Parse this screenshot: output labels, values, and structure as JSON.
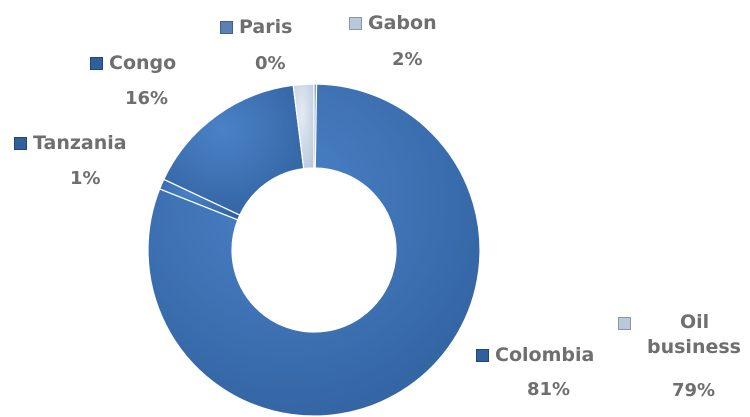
{
  "chart_data": {
    "type": "pie",
    "variant": "donut",
    "title": "",
    "slices": [
      {
        "label": "Colombia",
        "percent_label": "81%",
        "value": 81,
        "color": "#2f5f9c",
        "color_light": "#4a82c8",
        "swatch": "#2f5f9c"
      },
      {
        "label": "Tanzania",
        "percent_label": "1%",
        "value": 1,
        "color": "#2f5f9c",
        "color_light": "#4a82c8",
        "swatch": "#2f5f9c"
      },
      {
        "label": "Congo",
        "percent_label": "16%",
        "value": 16,
        "color": "#2f5f9c",
        "color_light": "#4a82c8",
        "swatch": "#2f5f9c"
      },
      {
        "label": "Gabon",
        "percent_label": "2%",
        "value": 2,
        "color": "#b9c8da",
        "color_light": "#e3ebf5",
        "swatch": "#b9c8da"
      },
      {
        "label": "Paris",
        "percent_label": "0%",
        "value": 0,
        "color": "#5b80b4",
        "color_light": "#9fb8d9",
        "swatch": "#5b80b4"
      }
    ],
    "extra_label": {
      "label": "Oil business",
      "label_line1": "Oil",
      "label_line2": "business",
      "percent_label": "79%",
      "swatch": "#b9c8da"
    },
    "legend": "none",
    "grid": false
  }
}
